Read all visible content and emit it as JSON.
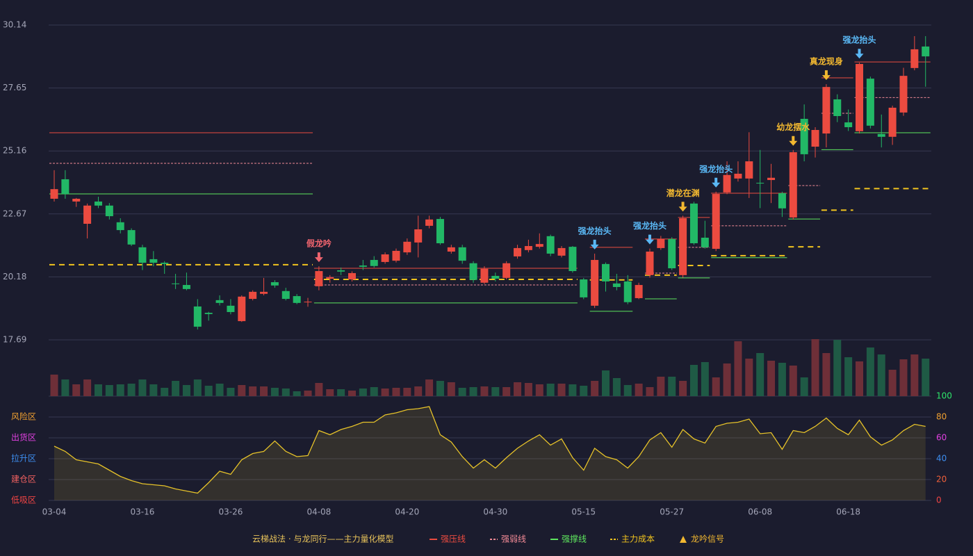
{
  "chart_data": {
    "type": "candlestick",
    "categories": [
      "03-04",
      null,
      null,
      null,
      null,
      null,
      null,
      null,
      "03-16",
      null,
      null,
      null,
      null,
      null,
      null,
      null,
      "03-26",
      null,
      null,
      null,
      null,
      null,
      null,
      null,
      "04-08",
      null,
      null,
      null,
      null,
      null,
      null,
      null,
      "04-20",
      null,
      null,
      null,
      null,
      null,
      null,
      null,
      "04-30",
      null,
      null,
      null,
      null,
      null,
      null,
      null,
      "05-15",
      null,
      null,
      null,
      null,
      null,
      null,
      null,
      "05-27",
      null,
      null,
      null,
      null,
      null,
      null,
      null,
      "06-08",
      null,
      null,
      null,
      null,
      null,
      null,
      null,
      "06-18",
      null,
      null,
      null,
      null,
      null,
      null,
      null
    ],
    "open": [
      23.27,
      24.04,
      23.16,
      22.28,
      23.16,
      23.0,
      22.34,
      22.03,
      21.35,
      20.88,
      20.74,
      19.92,
      19.86,
      19.01,
      18.76,
      19.26,
      19.04,
      18.43,
      19.31,
      19.51,
      19.97,
      19.62,
      19.42,
      19.18,
      19.81,
      20.11,
      20.44,
      20.08,
      20.63,
      20.85,
      20.77,
      20.82,
      21.15,
      21.54,
      22.2,
      22.47,
      21.18,
      21.35,
      20.72,
      19.95,
      20.22,
      20.14,
      20.99,
      21.24,
      21.37,
      21.79,
      21.02,
      21.37,
      20.08,
      19.04,
      20.69,
      19.92,
      20.0,
      19.34,
      20.25,
      21.32,
      21.68,
      20.25,
      23.08,
      21.73,
      21.29,
      23.52,
      24.07,
      24.07,
      23.9,
      24.01,
      23.49,
      22.53,
      26.43,
      25.33,
      25.85,
      27.2,
      26.29,
      25.94,
      28.02,
      25.83,
      25.72,
      26.68,
      28.44,
      29.29
    ],
    "high": [
      24.4,
      24.4,
      23.3,
      23.08,
      23.35,
      23.1,
      22.5,
      22.1,
      21.45,
      21.2,
      20.8,
      20.3,
      20.35,
      19.3,
      18.8,
      19.45,
      19.3,
      19.45,
      19.65,
      20.14,
      20.05,
      19.75,
      19.5,
      19.35,
      20.6,
      20.25,
      20.55,
      20.4,
      20.85,
      21.0,
      21.15,
      21.3,
      21.7,
      22.6,
      22.6,
      22.55,
      21.45,
      21.45,
      20.8,
      20.6,
      20.35,
      20.8,
      21.45,
      21.65,
      21.9,
      21.85,
      21.4,
      21.4,
      20.14,
      21.1,
      20.75,
      20.3,
      20.25,
      19.95,
      21.3,
      21.8,
      21.75,
      22.6,
      23.15,
      22.4,
      23.55,
      24.75,
      24.75,
      25.9,
      25.2,
      24.65,
      23.55,
      25.2,
      27.0,
      26.1,
      27.8,
      27.4,
      26.8,
      28.65,
      28.1,
      26.6,
      26.95,
      28.45,
      29.7,
      29.7
    ],
    "low": [
      23.16,
      23.27,
      22.95,
      21.7,
      22.9,
      22.45,
      21.9,
      21.4,
      20.45,
      20.6,
      20.3,
      19.7,
      19.65,
      18.1,
      18.45,
      19.05,
      18.7,
      18.4,
      19.25,
      19.45,
      19.75,
      19.25,
      19.1,
      19.0,
      19.65,
      19.95,
      20.25,
      20.0,
      20.45,
      20.55,
      20.7,
      20.75,
      21.05,
      20.95,
      22.1,
      21.45,
      21.1,
      20.7,
      19.95,
      19.9,
      20.0,
      20.08,
      20.9,
      21.15,
      21.3,
      21.0,
      20.95,
      20.35,
      19.3,
      18.95,
      19.6,
      19.65,
      19.1,
      19.3,
      20.15,
      21.25,
      20.45,
      20.15,
      21.45,
      21.3,
      21.2,
      23.45,
      23.95,
      23.3,
      22.9,
      23.1,
      22.55,
      22.45,
      24.75,
      24.9,
      25.3,
      26.3,
      25.95,
      25.85,
      26.05,
      25.3,
      25.4,
      26.55,
      28.35,
      27.7
    ],
    "close": [
      23.65,
      23.46,
      23.27,
      23.0,
      23.0,
      22.58,
      22.03,
      21.46,
      20.74,
      20.74,
      20.69,
      19.9,
      19.7,
      18.21,
      18.71,
      19.15,
      18.79,
      19.4,
      19.59,
      19.59,
      19.84,
      19.31,
      19.15,
      19.2,
      20.41,
      20.17,
      20.39,
      20.33,
      20.58,
      20.61,
      21.07,
      21.21,
      21.57,
      22.06,
      22.45,
      21.51,
      21.35,
      20.82,
      20.06,
      20.5,
      20.11,
      20.72,
      21.32,
      21.4,
      21.48,
      21.1,
      21.32,
      20.41,
      19.37,
      20.85,
      20.0,
      19.78,
      19.18,
      19.86,
      21.18,
      21.68,
      20.52,
      22.5,
      21.51,
      21.35,
      23.46,
      24.21,
      24.26,
      24.75,
      23.88,
      24.1,
      22.89,
      25.11,
      25.03,
      25.99,
      27.69,
      26.54,
      26.1,
      28.6,
      26.16,
      25.72,
      26.87,
      28.13,
      29.18,
      28.9
    ],
    "volume": [
      31,
      24,
      17,
      24,
      17,
      16,
      17,
      18,
      24,
      17,
      12,
      22,
      16,
      24,
      15,
      18,
      12,
      16,
      14,
      14,
      12,
      11,
      7,
      8,
      19,
      10,
      10,
      8,
      11,
      13,
      11,
      12,
      12,
      14,
      24,
      22,
      20,
      12,
      13,
      14,
      13,
      13,
      20,
      19,
      17,
      18,
      18,
      17,
      15,
      22,
      37,
      26,
      16,
      18,
      13,
      28,
      28,
      22,
      45,
      49,
      27,
      47,
      79,
      54,
      62,
      51,
      48,
      44,
      27,
      82,
      62,
      81,
      56,
      50,
      70,
      60,
      38,
      53,
      60,
      54
    ],
    "up_color": "#eb4b40",
    "down_color": "#22b866",
    "up_volume_color": "#6e2f38",
    "down_volume_color": "#1f5a45",
    "ylim": [
      17.69,
      30.14
    ],
    "yticks": [
      17.69,
      20.18,
      22.67,
      25.16,
      27.65,
      30.14
    ],
    "grid": true,
    "indicator": {
      "values": [
        52,
        47,
        39,
        37,
        35,
        29,
        23,
        19,
        16,
        15,
        14,
        11,
        9,
        7,
        17,
        28,
        25,
        39,
        45,
        47,
        57,
        47,
        42,
        43,
        67,
        63,
        68,
        71,
        75,
        75,
        82,
        84,
        87,
        88,
        90,
        63,
        56,
        42,
        31,
        39,
        31,
        41,
        50,
        57,
        63,
        53,
        59,
        41,
        29,
        50,
        42,
        39,
        31,
        42,
        58,
        65,
        51,
        68,
        59,
        55,
        71,
        74,
        75,
        78,
        64,
        65,
        49,
        67,
        65,
        71,
        79,
        69,
        63,
        77,
        61,
        53,
        58,
        67,
        73,
        71
      ],
      "color": "#e6c229",
      "ylim": [
        0,
        100
      ],
      "yticks": [
        0,
        20,
        40,
        60,
        80,
        100
      ],
      "ytick_colors": [
        "#ef4444",
        "#f0603a",
        "#3d8ef0",
        "#e040e0",
        "#f0a030",
        "#2ee66b"
      ],
      "zones": [
        {
          "value": 0,
          "label": "低吸区",
          "color": "#ef4444"
        },
        {
          "value": 20,
          "label": "建仓区",
          "color": "#f06060"
        },
        {
          "value": 40,
          "label": "拉升区",
          "color": "#3d8ef0"
        },
        {
          "value": 60,
          "label": "出货区",
          "color": "#e040e0"
        },
        {
          "value": 80,
          "label": "风险区",
          "color": "#f0a030"
        }
      ]
    },
    "levels": [
      {
        "from": 0,
        "to": 23,
        "strong_pressure": 25.88,
        "strong_weak": 24.67,
        "strong_support": 23.46,
        "cost": 20.66
      },
      {
        "from": 24,
        "to": 47,
        "strong_pressure": 20.52,
        "strong_weak": 19.86,
        "strong_support": 19.15,
        "cost": 20.08
      },
      {
        "from": 49,
        "to": 52,
        "strong_pressure": 21.35,
        "strong_weak": null,
        "strong_support": 18.82,
        "cost": 20.06
      },
      {
        "from": 54,
        "to": 56,
        "strong_pressure": 21.68,
        "strong_weak": 20.33,
        "strong_support": 19.31,
        "cost": 20.25
      },
      {
        "from": 57,
        "to": 59,
        "strong_pressure": 22.53,
        "strong_weak": 21.35,
        "strong_support": 20.14,
        "cost": 20.63
      },
      {
        "from": 60,
        "to": 66,
        "strong_pressure": 23.49,
        "strong_weak": 22.2,
        "strong_support": 20.94,
        "cost": 21.02
      },
      {
        "from": 67,
        "to": 69,
        "strong_pressure": null,
        "strong_weak": 23.79,
        "strong_support": 22.47,
        "cost": 21.37
      },
      {
        "from": 70,
        "to": 72,
        "strong_pressure": 28.05,
        "strong_weak": 26.65,
        "strong_support": 25.21,
        "cost": 22.82
      },
      {
        "from": 73,
        "to": 79,
        "strong_pressure": 28.68,
        "strong_weak": 27.27,
        "strong_support": 25.88,
        "cost": 23.67
      }
    ],
    "signals": [
      {
        "index": 24,
        "label": "假龙吟",
        "color": "#f0646e"
      },
      {
        "index": 49,
        "label": "强龙抬头",
        "color": "#5ab8f5"
      },
      {
        "index": 54,
        "label": "强龙抬头",
        "color": "#5ab8f5"
      },
      {
        "index": 57,
        "label": "潜龙在渊",
        "color": "#f2b830"
      },
      {
        "index": 60,
        "label": "强龙抬头",
        "color": "#5ab8f5"
      },
      {
        "index": 67,
        "label": "幼龙摆水",
        "color": "#f2b830"
      },
      {
        "index": 70,
        "label": "真龙现身",
        "color": "#f2b830"
      },
      {
        "index": 73,
        "label": "强龙抬头",
        "color": "#5ab8f5"
      }
    ],
    "legend_title": "云梯战法 · 与龙同行——主力量化模型",
    "legend_title_color": "#e8c35a",
    "legend": [
      {
        "name": "强压线",
        "key": "strong_pressure",
        "color": "#eb4b40",
        "style": "solid"
      },
      {
        "name": "强弱线",
        "key": "strong_weak",
        "color": "#f28a96",
        "style": "dotted"
      },
      {
        "name": "强撑线",
        "key": "strong_support",
        "color": "#5ee65e",
        "style": "solid"
      },
      {
        "name": "主力成本",
        "key": "cost",
        "color": "#f2c41e",
        "style": "dashed"
      },
      {
        "name": "龙吟信号",
        "key": "signal",
        "color": "#f2b830",
        "style": "triangle"
      }
    ]
  }
}
